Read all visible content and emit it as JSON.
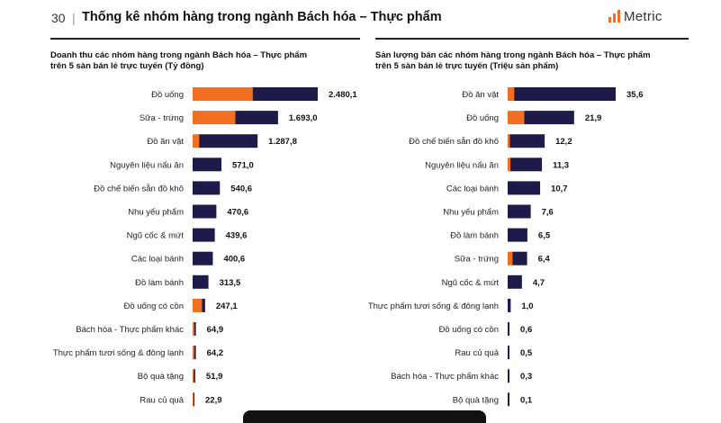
{
  "header": {
    "page_number": "30",
    "separator": "|",
    "title": "Thống kê nhóm hàng trong ngành Bách hóa – Thực phẩm",
    "logo_text": "Metric"
  },
  "colors": {
    "accent": "#f26f21",
    "navy": "#1e1b4b",
    "divider": "#222222"
  },
  "chart_data": [
    {
      "type": "bar",
      "orientation": "horizontal",
      "stacked": true,
      "title": "Doanh thu các nhóm hàng trong ngành Bách hóa – Thực phẩm trên 5 sàn bán lẻ trực tuyến (Tỷ đồng)",
      "categories": [
        "Đồ uống",
        "Sữa - trứng",
        "Đồ ăn vặt",
        "Nguyên liệu nấu ăn",
        "Đồ chế biến sẵn  đồ khô",
        "Nhu yếu phẩm",
        "Ngũ cốc & mứt",
        "Các loại bánh",
        "Đồ làm bánh",
        "Đồ uống có cồn",
        "Bách hóa - Thực phẩm khác",
        "Thực phẩm tươi sống & đông lạnh",
        "Bộ quà tặng",
        "Rau củ quả"
      ],
      "values": [
        2480.1,
        1693.0,
        1287.8,
        571.0,
        540.6,
        470.6,
        439.6,
        400.6,
        313.5,
        247.1,
        64.9,
        64.2,
        51.9,
        22.9
      ],
      "value_labels": [
        "2.480,1",
        "1.693,0",
        "1.287,8",
        "571,0",
        "540,6",
        "470,6",
        "439,6",
        "400,6",
        "313,5",
        "247,1",
        "64,9",
        "64,2",
        "51,9",
        "22,9"
      ],
      "orange_share": [
        0.48,
        0.5,
        0.1,
        0.0,
        0.0,
        0.0,
        0.0,
        0.0,
        0.0,
        0.75,
        0.5,
        0.5,
        0.5,
        0.5
      ],
      "series_colors": [
        "#f26f21",
        "#1e1b4b"
      ],
      "xlim": [
        0,
        2480.1
      ],
      "grid": false
    },
    {
      "type": "bar",
      "orientation": "horizontal",
      "stacked": true,
      "title": "Sản lượng bán các nhóm hàng trong ngành Bách hóa – Thực phẩm trên 5 sàn bán lẻ trực tuyến (Triệu sản phẩm)",
      "categories": [
        "Đồ ăn vặt",
        "Đồ uống",
        "Đồ chế biến sẵn  đồ khô",
        "Nguyên liệu nấu ăn",
        "Các loại bánh",
        "Nhu yếu phẩm",
        "Đồ làm bánh",
        "Sữa - trứng",
        "Ngũ cốc & mứt",
        "Thực phẩm tươi sống & đông lạnh",
        "Đồ uống có cồn",
        "Rau củ quả",
        "Bách hóa - Thực phẩm khác",
        "Bộ quà tặng"
      ],
      "values": [
        35.6,
        21.9,
        12.2,
        11.3,
        10.7,
        7.6,
        6.5,
        6.4,
        4.7,
        1.0,
        0.6,
        0.5,
        0.3,
        0.1
      ],
      "value_labels": [
        "35,6",
        "21,9",
        "12,2",
        "11,3",
        "10,7",
        "7,6",
        "6,5",
        "6,4",
        "4,7",
        "1,0",
        "0,6",
        "0,5",
        "0,3",
        "0,1"
      ],
      "orange_share": [
        0.06,
        0.25,
        0.06,
        0.08,
        0.0,
        0.0,
        0.0,
        0.25,
        0.0,
        0.0,
        0.0,
        0.0,
        0.0,
        0.0
      ],
      "series_colors": [
        "#f26f21",
        "#1e1b4b"
      ],
      "xlim": [
        0,
        35.6
      ],
      "grid": false
    }
  ]
}
